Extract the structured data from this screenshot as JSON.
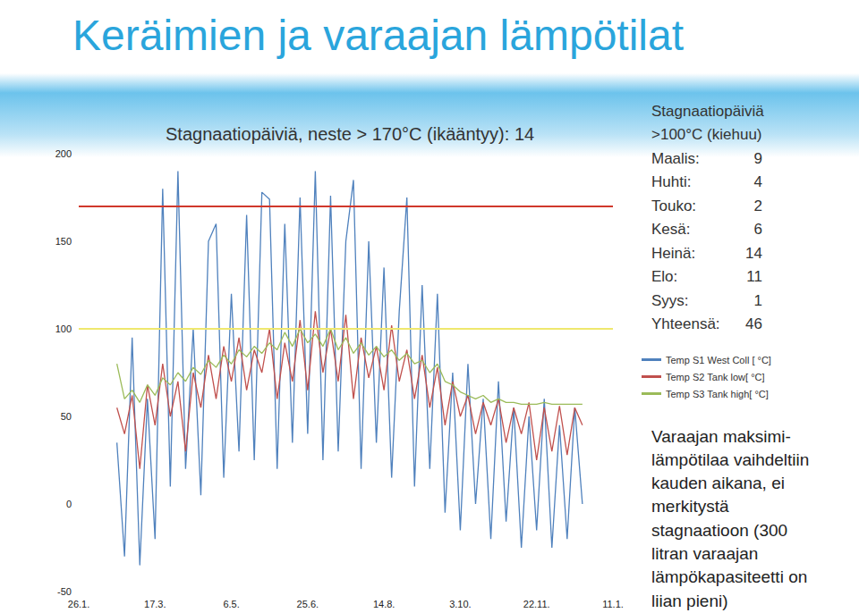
{
  "chart_data": {
    "type": "line",
    "title": "Keräimien ja varaajan lämpötilat",
    "annotation": "Stagnaatiopäiviä, neste > 170°C (ikääntyy): 14",
    "categories": [
      "26.1.",
      null,
      null,
      null,
      null,
      null,
      null,
      null,
      null,
      null,
      "17.3.",
      null,
      null,
      null,
      null,
      null,
      null,
      null,
      null,
      null,
      "6.5.",
      null,
      null,
      null,
      null,
      null,
      null,
      null,
      null,
      null,
      "25.6.",
      null,
      null,
      null,
      null,
      null,
      null,
      null,
      null,
      null,
      "14.8.",
      null,
      null,
      null,
      null,
      null,
      null,
      null,
      null,
      null,
      "3.10.",
      null,
      null,
      null,
      null,
      null,
      null,
      null,
      null,
      null,
      "22.11.",
      null,
      null,
      null,
      null,
      null,
      null,
      null,
      null,
      null,
      "11.1."
    ],
    "series": [
      {
        "name": "Temp S1 West Coll [ °C]",
        "color": "#4f81bd",
        "values": [
          null,
          null,
          null,
          null,
          null,
          35,
          -30,
          95,
          -35,
          60,
          -20,
          180,
          10,
          190,
          20,
          100,
          5,
          150,
          160,
          15,
          120,
          30,
          165,
          25,
          178,
          174,
          20,
          160,
          35,
          175,
          40,
          190,
          25,
          176,
          30,
          150,
          185,
          20,
          150,
          35,
          135,
          15,
          110,
          175,
          10,
          125,
          20,
          120,
          -5,
          75,
          -15,
          80,
          0,
          60,
          -20,
          70,
          -10,
          55,
          -25,
          50,
          -15,
          60,
          -25,
          45,
          -20,
          55,
          0,
          null,
          null,
          null,
          null
        ]
      },
      {
        "name": "Temp S2 Tank low[ °C]",
        "color": "#c0504d",
        "values": [
          null,
          null,
          null,
          null,
          null,
          55,
          40,
          62,
          20,
          68,
          45,
          80,
          50,
          70,
          30,
          75,
          55,
          85,
          60,
          90,
          70,
          95,
          65,
          88,
          75,
          100,
          60,
          92,
          70,
          105,
          65,
          110,
          75,
          100,
          70,
          108,
          60,
          95,
          72,
          90,
          65,
          102,
          70,
          88,
          60,
          85,
          55,
          78,
          45,
          70,
          50,
          62,
          40,
          58,
          45,
          60,
          35,
          55,
          40,
          58,
          25,
          55,
          30,
          56,
          28,
          55,
          45,
          null,
          null,
          null,
          null
        ]
      },
      {
        "name": "Temp S3 Tank high[ °C]",
        "color": "#9bbb59",
        "values": [
          null,
          null,
          null,
          null,
          null,
          80,
          60,
          65,
          58,
          68,
          62,
          72,
          68,
          75,
          70,
          78,
          74,
          82,
          78,
          85,
          80,
          88,
          84,
          90,
          86,
          92,
          88,
          98,
          90,
          100,
          92,
          97,
          90,
          100,
          88,
          95,
          86,
          92,
          85,
          90,
          84,
          88,
          82,
          86,
          80,
          82,
          75,
          80,
          70,
          68,
          64,
          62,
          60,
          62,
          58,
          60,
          58,
          58,
          57,
          57,
          57,
          58,
          57,
          57,
          57,
          57,
          57,
          null,
          null,
          null,
          null
        ]
      }
    ],
    "reference_lines": [
      {
        "value": 170,
        "color": "#d0382c"
      },
      {
        "value": 100,
        "color": "#efe86e"
      }
    ],
    "ylim": [
      -50,
      200
    ],
    "yticks": [
      -50,
      0,
      50,
      100,
      150,
      200
    ],
    "grid": false,
    "legend": "right",
    "stagnation_table": {
      "title": "Stagnaatiopäiviä",
      "subtitle": ">100°C (kiehuu)",
      "rows": [
        {
          "label": "Maalis:",
          "value": 9
        },
        {
          "label": "Huhti:",
          "value": 4
        },
        {
          "label": "Touko:",
          "value": 2
        },
        {
          "label": "Kesä:",
          "value": 6
        },
        {
          "label": "Heinä:",
          "value": 14
        },
        {
          "label": "Elo:",
          "value": 11
        },
        {
          "label": "Syys:",
          "value": 1
        },
        {
          "label": "Yhteensä:",
          "value": 46
        }
      ]
    },
    "note": [
      "Varaajan maksimi-",
      "lämpötilaa vaihdeltiin",
      "kauden aikana, ei",
      "merkitystä",
      "stagnaatioon (300",
      "litran varaajan",
      "lämpökapasiteetti on",
      "liian pieni)"
    ]
  }
}
